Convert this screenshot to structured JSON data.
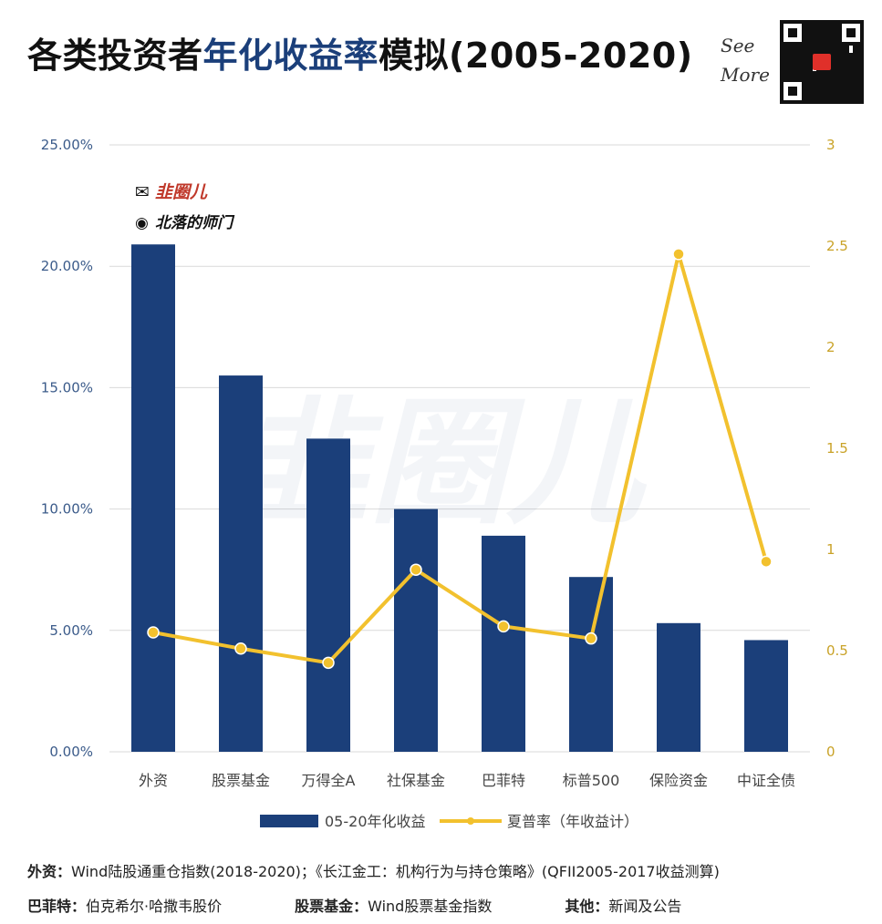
{
  "title": {
    "part1": "各类投资者",
    "part2": "年化收益率",
    "part3": "模拟(2005-2020)"
  },
  "see_more": {
    "line1": "See",
    "line2": "More"
  },
  "watermarks": {
    "brand": "韭圈儿",
    "weibo": "北落的师门"
  },
  "colors": {
    "bar": "#1b3f7a",
    "line": "#f2c12e",
    "axis_left": "#3b5b8a",
    "axis_right": "#c9a227",
    "grid": "#d9d9d9"
  },
  "chart_data": {
    "type": "bar+line",
    "categories": [
      "外资",
      "股票基金",
      "万得全A",
      "社保基金",
      "巴菲特",
      "标普500",
      "保险资金",
      "中证全债"
    ],
    "series": [
      {
        "name": "05-20年化收益",
        "type": "bar",
        "axis": "left",
        "unit": "%",
        "values": [
          20.9,
          15.5,
          12.9,
          10.0,
          8.9,
          7.2,
          5.3,
          4.6
        ]
      },
      {
        "name": "夏普率（年收益计）",
        "type": "line",
        "axis": "right",
        "values": [
          0.59,
          0.51,
          0.44,
          0.9,
          0.62,
          0.56,
          2.46,
          0.94
        ]
      }
    ],
    "y_left": {
      "min": 0,
      "max": 25,
      "ticks": [
        "0.00%",
        "5.00%",
        "10.00%",
        "15.00%",
        "20.00%",
        "25.00%"
      ]
    },
    "y_right": {
      "min": 0,
      "max": 3,
      "ticks": [
        "0",
        "0.5",
        "1",
        "1.5",
        "2",
        "2.5",
        "3"
      ]
    },
    "legend_position": "bottom",
    "grid": true
  },
  "footer": {
    "line1_label": "外资：",
    "line1_text": "Wind陆股通重仓指数(2018-2020)；《长江金工：机构行为与持仓策略》(QFII2005-2017收益测算)",
    "line2_label1": "巴菲特：",
    "line2_text1": "伯克希尔·哈撒韦股价",
    "line2_label2": "股票基金：",
    "line2_text2": "Wind股票基金指数",
    "line2_label3": "其他：",
    "line2_text3": "新闻及公告"
  }
}
